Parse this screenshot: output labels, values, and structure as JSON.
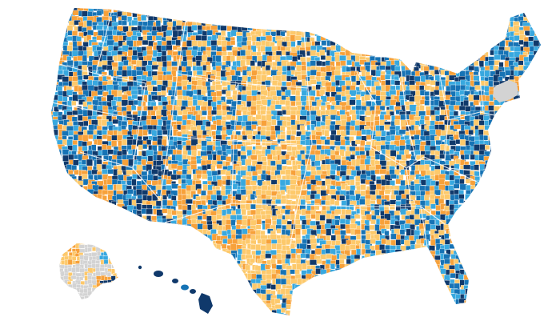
{
  "map": {
    "palette": {
      "light_orange": "#fdc96b",
      "orange": "#f7a13a",
      "light_blue": "#38a8df",
      "blue": "#1673b5",
      "navy": "#10396b",
      "no_data": "#d3d3d3",
      "background": "#ffffff",
      "border": "#ffffff"
    },
    "category_order": [
      "light_orange",
      "orange",
      "light_blue",
      "blue",
      "navy"
    ],
    "regions": [
      "contiguous-us",
      "alaska",
      "hawaii"
    ],
    "no_data_areas": [
      "alaska-interior",
      "new-england-south"
    ]
  }
}
